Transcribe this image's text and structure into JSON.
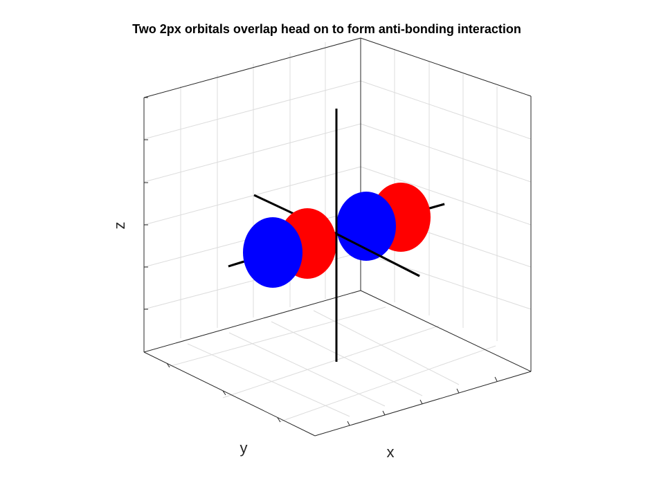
{
  "figure": {
    "title": "Two 2px orbitals overlap head on to form anti-bonding interaction",
    "xlabel": "x",
    "ylabel": "y",
    "zlabel": "z"
  },
  "colors": {
    "positive_lobe": "#ff0000",
    "negative_lobe": "#0000ff",
    "axes_lines": "#000000",
    "grid": "#dcdcdc",
    "box": "#262626"
  },
  "scene": {
    "orbitals": [
      {
        "name": "left-2px-orbital",
        "inner_lobe_color": "red",
        "outer_lobe_color": "blue"
      },
      {
        "name": "right-2px-orbital",
        "inner_lobe_color": "blue",
        "outer_lobe_color": "red"
      }
    ],
    "phase_relation": "anti-bonding"
  }
}
